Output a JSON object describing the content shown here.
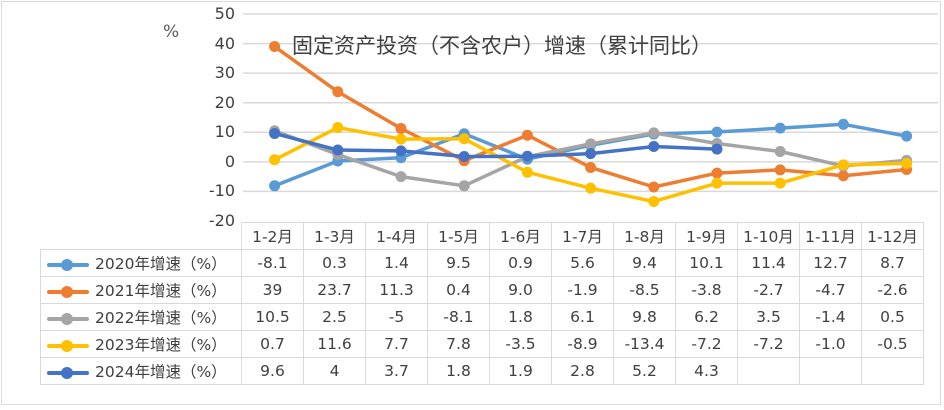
{
  "chart_data": {
    "type": "line",
    "title": "固定资产投资（不含农户）增速（累计同比）",
    "ylabel": "%",
    "xlabel": "",
    "ylim": [
      -20,
      50
    ],
    "yticks": [
      "50",
      "40",
      "30",
      "20",
      "10",
      "0",
      "-10",
      "-20"
    ],
    "grid": true,
    "legend_position": "data-table",
    "categories": [
      "1-2月",
      "1-3月",
      "1-4月",
      "1-5月",
      "1-6月",
      "1-7月",
      "1-8月",
      "1-9月",
      "1-10月",
      "1-11月",
      "1-12月"
    ],
    "series": [
      {
        "name": "2020年增速（%）",
        "color": "#5b9bd5",
        "values": [
          -8.1,
          0.3,
          1.4,
          9.5,
          0.9,
          5.6,
          9.4,
          10.1,
          11.4,
          12.7,
          8.7
        ],
        "labels": [
          "-8.1",
          "0.3",
          "1.4",
          "9.5",
          "0.9",
          "5.6",
          "9.4",
          "10.1",
          "11.4",
          "12.7",
          "8.7"
        ]
      },
      {
        "name": "2021年增速（%）",
        "color": "#ed7d31",
        "values": [
          39,
          23.7,
          11.3,
          0.4,
          9.0,
          -1.9,
          -8.5,
          -3.8,
          -2.7,
          -4.7,
          -2.6
        ],
        "labels": [
          "39",
          "23.7",
          "11.3",
          "0.4",
          "9.0",
          "-1.9",
          "-8.5",
          "-3.8",
          "-2.7",
          "-4.7",
          "-2.6"
        ]
      },
      {
        "name": "2022年增速（%）",
        "color": "#a5a5a5",
        "values": [
          10.5,
          2.5,
          -5,
          -8.1,
          1.8,
          6.1,
          9.8,
          6.2,
          3.5,
          -1.4,
          0.5
        ],
        "labels": [
          "10.5",
          "2.5",
          "-5",
          "-8.1",
          "1.8",
          "6.1",
          "9.8",
          "6.2",
          "3.5",
          "-1.4",
          "0.5"
        ]
      },
      {
        "name": "2023年增速（%）",
        "color": "#ffc000",
        "values": [
          0.7,
          11.6,
          7.7,
          7.8,
          -3.5,
          -8.9,
          -13.4,
          -7.2,
          -7.2,
          -1.0,
          -0.5
        ],
        "labels": [
          "0.7",
          "11.6",
          "7.7",
          "7.8",
          "-3.5",
          "-8.9",
          "-13.4",
          "-7.2",
          "-7.2",
          "-1.0",
          "-0.5"
        ]
      },
      {
        "name": "2024年增速（%）",
        "color": "#4472c4",
        "values": [
          9.6,
          4,
          3.7,
          1.8,
          1.9,
          2.8,
          5.2,
          4.3,
          null,
          null,
          null
        ],
        "labels": [
          "9.6",
          "4",
          "3.7",
          "1.8",
          "1.9",
          "2.8",
          "5.2",
          "4.3",
          "",
          "",
          ""
        ]
      }
    ]
  }
}
